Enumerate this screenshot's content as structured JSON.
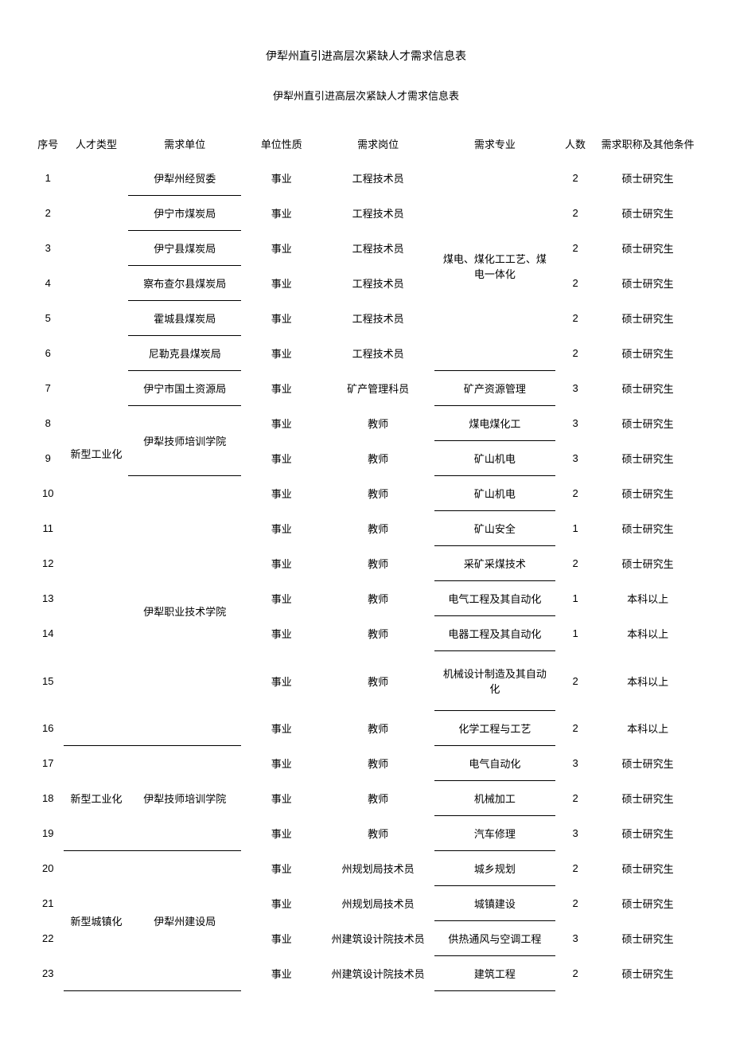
{
  "main_title": "伊犁州直引进高层次紧缺人才需求信息表",
  "sub_title": "伊犁州直引进高层次紧缺人才需求信息表",
  "headers": {
    "seq": "序号",
    "type": "人才类型",
    "unit": "需求单位",
    "nature": "单位性质",
    "position": "需求岗位",
    "major": "需求专业",
    "count": "人数",
    "condition": "需求职称及其他条件"
  },
  "type_groups": [
    {
      "type": "新型工业化",
      "row_start": 1,
      "row_end": 16,
      "label_row": 9
    },
    {
      "type": "新型工业化",
      "row_start": 17,
      "row_end": 19,
      "label_row": 18
    },
    {
      "type": "新型城镇化",
      "row_start": 20,
      "row_end": 23,
      "label_row": 22
    }
  ],
  "unit_groups": [
    {
      "unit": "伊犁州经贸委",
      "rows": [
        1
      ]
    },
    {
      "unit": "伊宁市煤炭局",
      "rows": [
        2
      ]
    },
    {
      "unit": "伊宁县煤炭局",
      "rows": [
        3
      ]
    },
    {
      "unit": "察布查尔县煤炭局",
      "rows": [
        4
      ]
    },
    {
      "unit": "霍城县煤炭局",
      "rows": [
        5
      ]
    },
    {
      "unit": "尼勒克县煤炭局",
      "rows": [
        6
      ]
    },
    {
      "unit": "伊宁市国土资源局",
      "rows": [
        7
      ]
    },
    {
      "unit": "伊犁技师培训学院",
      "rows": [
        8,
        9
      ],
      "label_between": true
    },
    {
      "unit": "伊犁职业技术学院",
      "rows": [
        10,
        11,
        12,
        13,
        14,
        15,
        16
      ],
      "label_between_rows": [
        13,
        14
      ]
    },
    {
      "unit": "伊犁技师培训学院",
      "rows": [
        17,
        18,
        19
      ],
      "label_row": 18
    },
    {
      "unit": "伊犁州建设局",
      "rows": [
        20,
        21,
        22,
        23
      ],
      "label_between_rows": [
        21,
        22
      ]
    }
  ],
  "major_groups": [
    {
      "major": "煤电、煤化工工艺、煤电一体化",
      "rows": [
        1,
        2,
        3,
        4,
        5,
        6
      ],
      "line1": "煤电、煤化工工艺、煤",
      "line2": "电一体化"
    }
  ],
  "rows": [
    {
      "seq": "1",
      "nature": "事业",
      "position": "工程技术员",
      "major": "",
      "count": "2",
      "condition": "硕士研究生"
    },
    {
      "seq": "2",
      "nature": "事业",
      "position": "工程技术员",
      "major": "",
      "count": "2",
      "condition": "硕士研究生"
    },
    {
      "seq": "3",
      "nature": "事业",
      "position": "工程技术员",
      "major": "煤电、煤化工工艺、煤",
      "count": "2",
      "condition": "硕士研究生"
    },
    {
      "seq": "4",
      "nature": "事业",
      "position": "工程技术员",
      "major": "电一体化",
      "count": "2",
      "condition": "硕士研究生"
    },
    {
      "seq": "5",
      "nature": "事业",
      "position": "工程技术员",
      "major": "",
      "count": "2",
      "condition": "硕士研究生"
    },
    {
      "seq": "6",
      "nature": "事业",
      "position": "工程技术员",
      "major": "",
      "count": "2",
      "condition": "硕士研究生"
    },
    {
      "seq": "7",
      "nature": "事业",
      "position": "矿产管理科员",
      "major": "矿产资源管理",
      "count": "3",
      "condition": "硕士研究生"
    },
    {
      "seq": "8",
      "nature": "事业",
      "position": "教师",
      "major": "煤电煤化工",
      "count": "3",
      "condition": "硕士研究生"
    },
    {
      "seq": "9",
      "nature": "事业",
      "position": "教师",
      "major": "矿山机电",
      "count": "3",
      "condition": "硕士研究生"
    },
    {
      "seq": "10",
      "nature": "事业",
      "position": "教师",
      "major": "矿山机电",
      "count": "2",
      "condition": "硕士研究生"
    },
    {
      "seq": "11",
      "nature": "事业",
      "position": "教师",
      "major": "矿山安全",
      "count": "1",
      "condition": "硕士研究生"
    },
    {
      "seq": "12",
      "nature": "事业",
      "position": "教师",
      "major": "采矿采煤技术",
      "count": "2",
      "condition": "硕士研究生"
    },
    {
      "seq": "13",
      "nature": "事业",
      "position": "教师",
      "major": "电气工程及其自动化",
      "count": "1",
      "condition": "本科以上"
    },
    {
      "seq": "14",
      "nature": "事业",
      "position": "教师",
      "major": "电器工程及其自动化",
      "count": "1",
      "condition": "本科以上"
    },
    {
      "seq": "15",
      "nature": "事业",
      "position": "教师",
      "major": "机械设计制造及其自动化",
      "count": "2",
      "condition": "本科以上"
    },
    {
      "seq": "16",
      "nature": "事业",
      "position": "教师",
      "major": "化学工程与工艺",
      "count": "2",
      "condition": "本科以上"
    },
    {
      "seq": "17",
      "nature": "事业",
      "position": "教师",
      "major": "电气自动化",
      "count": "3",
      "condition": "硕士研究生"
    },
    {
      "seq": "18",
      "nature": "事业",
      "position": "教师",
      "major": "机械加工",
      "count": "2",
      "condition": "硕士研究生"
    },
    {
      "seq": "19",
      "nature": "事业",
      "position": "教师",
      "major": "汽车修理",
      "count": "3",
      "condition": "硕士研究生"
    },
    {
      "seq": "20",
      "nature": "事业",
      "position": "州规划局技术员",
      "major": "城乡规划",
      "count": "2",
      "condition": "硕士研究生"
    },
    {
      "seq": "21",
      "nature": "事业",
      "position": "州规划局技术员",
      "major": "城镇建设",
      "count": "2",
      "condition": "硕士研究生"
    },
    {
      "seq": "22",
      "nature": "事业",
      "position": "州建筑设计院技术员",
      "major": "供热通风与空调工程",
      "count": "3",
      "condition": "硕士研究生"
    },
    {
      "seq": "23",
      "nature": "事业",
      "position": "州建筑设计院技术员",
      "major": "建筑工程",
      "count": "2",
      "condition": "硕士研究生"
    }
  ],
  "units_display": [
    "伊犁州经贸委",
    "伊宁市煤炭局",
    "伊宁县煤炭局",
    "察布查尔县煤炭局",
    "霍城县煤炭局",
    "尼勒克县煤炭局",
    "伊宁市国土资源局"
  ],
  "unit_8_9": "伊犁技师培训学院",
  "unit_10_16": "伊犁职业技术学院",
  "unit_17_19": "伊犁技师培训学院",
  "unit_20_23": "伊犁州建设局",
  "type_1_16": "新型工业化",
  "type_17_19": "新型工业化",
  "type_20_23": "新型城镇化"
}
